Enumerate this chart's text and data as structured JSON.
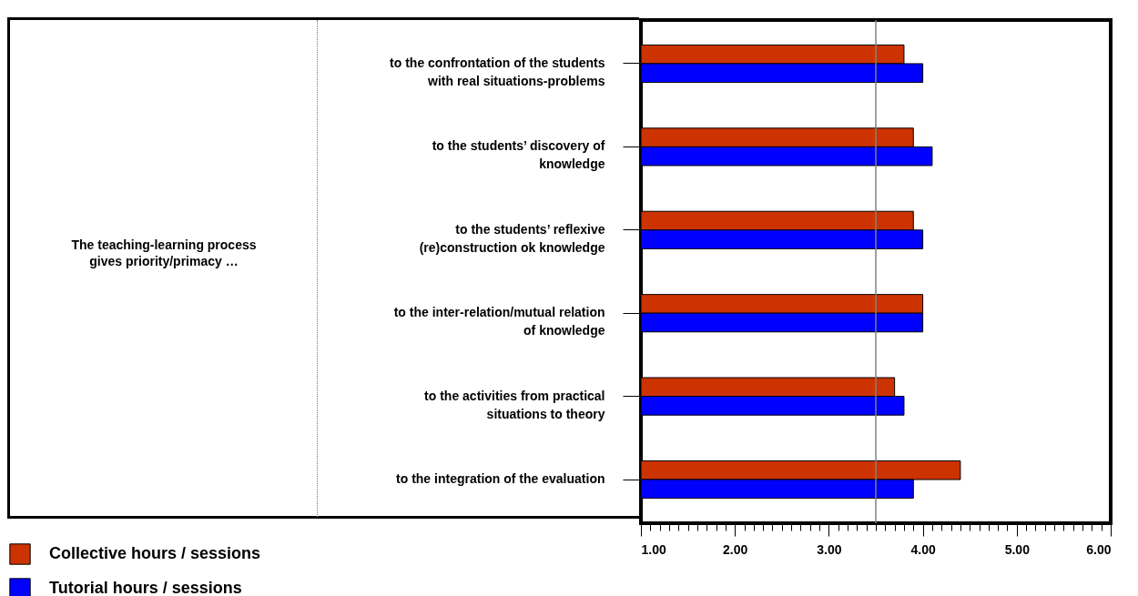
{
  "chart_data": {
    "type": "bar",
    "orientation": "horizontal",
    "categories": [
      "to the confrontation of the students\nwith real situations-problems",
      "to the students’ discovery of\nknowledge",
      "to the students’ reflexive\n(re)construction ok knowledge",
      "to the inter-relation/mutual relation\nof knowledge",
      "to the activities from practical\nsituations to theory",
      "to the integration of the evaluation"
    ],
    "series": [
      {
        "name": "Collective hours / sessions",
        "color": "#cc3300",
        "values": [
          3.8,
          3.9,
          3.9,
          4.0,
          3.7,
          4.4
        ]
      },
      {
        "name": "Tutorial hours / sessions",
        "color": "#0000ff",
        "values": [
          4.0,
          4.1,
          4.0,
          4.0,
          3.8,
          3.9
        ]
      }
    ],
    "xlim": [
      1,
      6
    ],
    "xticks": [
      {
        "value": 1,
        "label": "1.00"
      },
      {
        "value": 1.1,
        "label": null
      },
      {
        "value": 1.2,
        "label": null
      },
      {
        "value": 1.3,
        "label": null
      },
      {
        "value": 1.4,
        "label": null
      },
      {
        "value": 1.5,
        "label": null
      },
      {
        "value": 1.6,
        "label": null
      },
      {
        "value": 1.7,
        "label": null
      },
      {
        "value": 1.8,
        "label": null
      },
      {
        "value": 1.9,
        "label": null
      },
      {
        "value": 2,
        "label": "2.00"
      },
      {
        "value": 2.1,
        "label": null
      },
      {
        "value": 2.2,
        "label": null
      },
      {
        "value": 2.3,
        "label": null
      },
      {
        "value": 2.4,
        "label": null
      },
      {
        "value": 2.5,
        "label": null
      },
      {
        "value": 2.6,
        "label": null
      },
      {
        "value": 2.7,
        "label": null
      },
      {
        "value": 2.8,
        "label": null
      },
      {
        "value": 2.9,
        "label": null
      },
      {
        "value": 3,
        "label": "3.00"
      },
      {
        "value": 3.1,
        "label": null
      },
      {
        "value": 3.2,
        "label": null
      },
      {
        "value": 3.3,
        "label": null
      },
      {
        "value": 3.4,
        "label": null
      },
      {
        "value": 3.5,
        "label": null
      },
      {
        "value": 3.6,
        "label": null
      },
      {
        "value": 3.7,
        "label": null
      },
      {
        "value": 3.8,
        "label": null
      },
      {
        "value": 3.9,
        "label": null
      },
      {
        "value": 4,
        "label": "4.00"
      },
      {
        "value": 4.1,
        "label": null
      },
      {
        "value": 4.2,
        "label": null
      },
      {
        "value": 4.3,
        "label": null
      },
      {
        "value": 4.4,
        "label": null
      },
      {
        "value": 4.5,
        "label": null
      },
      {
        "value": 4.6,
        "label": null
      },
      {
        "value": 4.7,
        "label": null
      },
      {
        "value": 4.8,
        "label": null
      },
      {
        "value": 4.9,
        "label": null
      },
      {
        "value": 5,
        "label": "5.00"
      },
      {
        "value": 5.1,
        "label": null
      },
      {
        "value": 5.2,
        "label": null
      },
      {
        "value": 5.3,
        "label": null
      },
      {
        "value": 5.4,
        "label": null
      },
      {
        "value": 5.5,
        "label": null
      },
      {
        "value": 5.6,
        "label": null
      },
      {
        "value": 5.7,
        "label": null
      },
      {
        "value": 5.8,
        "label": null
      },
      {
        "value": 5.9,
        "label": null
      },
      {
        "value": 6,
        "label": "6.00"
      }
    ],
    "ref_lines": [
      {
        "axis": "x",
        "value": 3.5,
        "color": "#808080"
      }
    ],
    "annotations": [
      "The teaching-learning process\ngives priority/primacy …"
    ],
    "legend": "bottom left",
    "grid": false
  }
}
